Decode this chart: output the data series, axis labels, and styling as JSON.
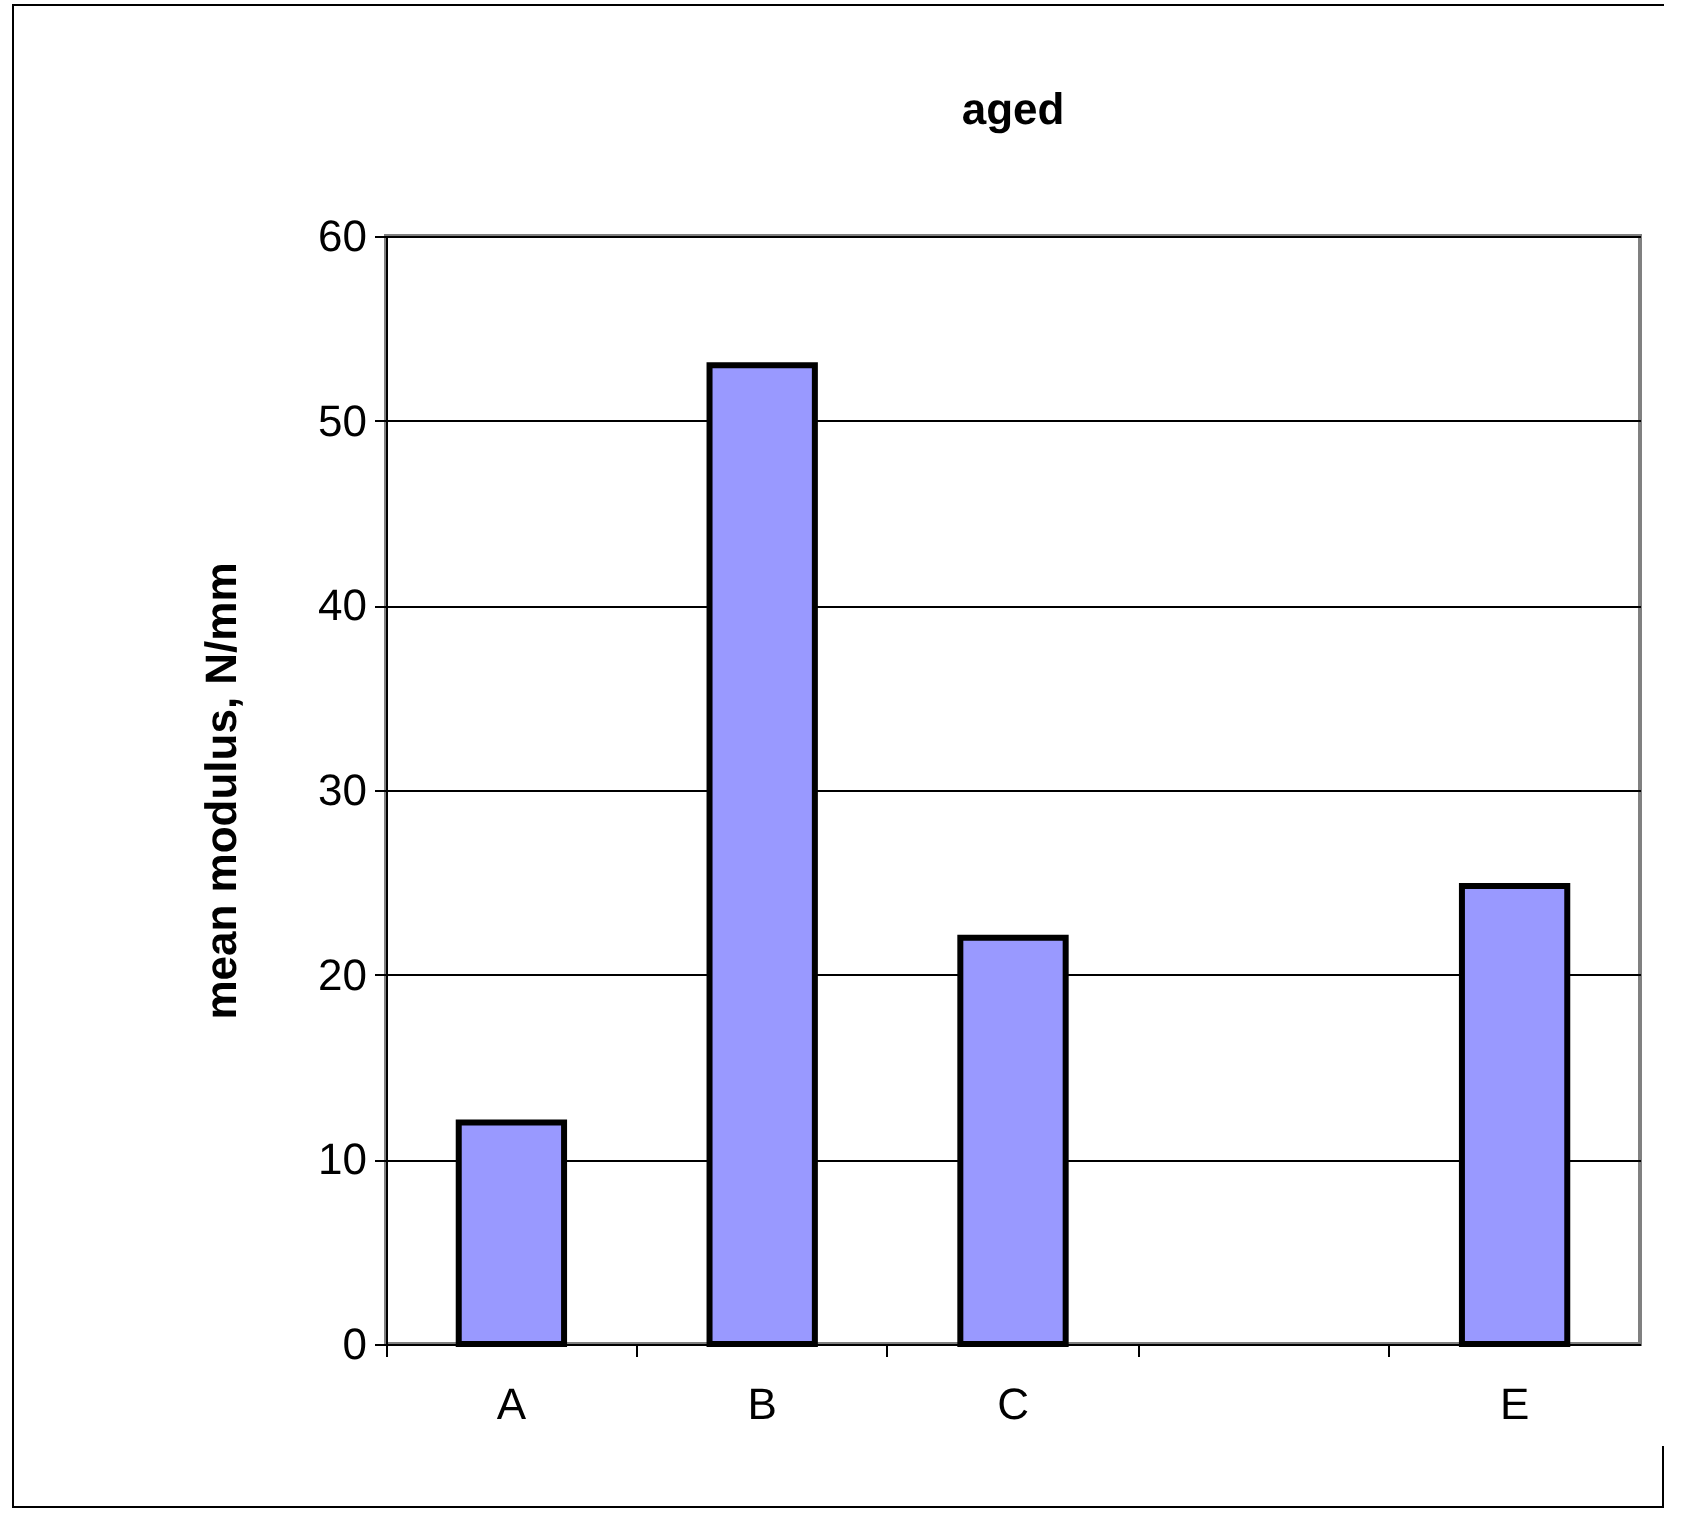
{
  "chart_data": {
    "type": "bar",
    "title": "aged",
    "ylabel": "mean modulus, N/mm",
    "categories": [
      "A",
      "B",
      "C",
      null,
      "E"
    ],
    "values": [
      12,
      53,
      22,
      null,
      24.8
    ],
    "color": "#9999ff",
    "ylim": [
      0,
      60
    ],
    "yticks": [
      0,
      10,
      20,
      30,
      40,
      50,
      60
    ],
    "grid": "y"
  }
}
